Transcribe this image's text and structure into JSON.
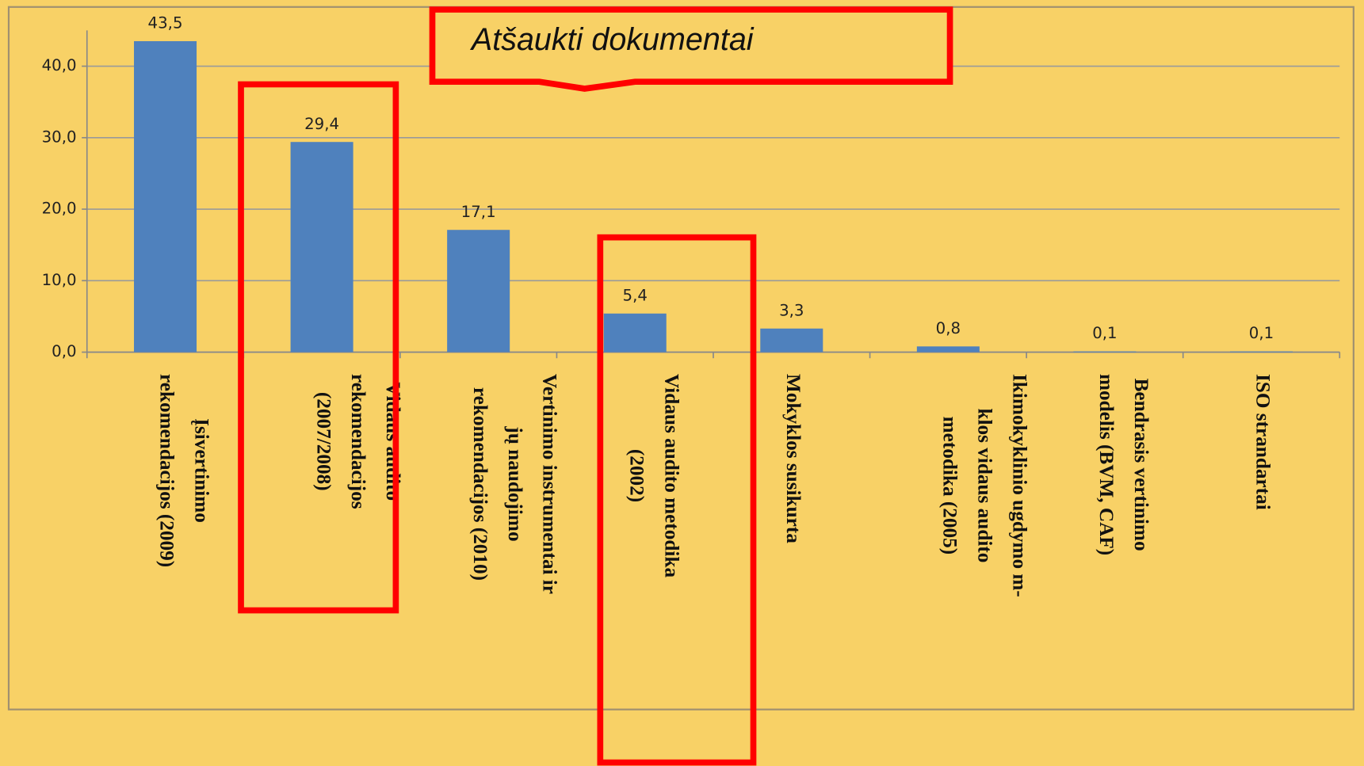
{
  "chart_data": {
    "type": "bar",
    "categories": [
      [
        "Įsivertinimo",
        "rekomendacijos (2009)"
      ],
      [
        "Vidaus audito",
        "rekomendacijos",
        "(2007/2008)"
      ],
      [
        "Vertinimo instrumentai ir",
        "jų naudojimo",
        "rekomendacijos (2010)"
      ],
      [
        "Vidaus audito metodika",
        "(2002)"
      ],
      [
        "Mokyklos susikurta"
      ],
      [
        "Ikimokyklinio ugdymo m-",
        "klos vidaus audito",
        "metodika (2005)"
      ],
      [
        "Bendrasis vertinimo",
        "modelis (BVM, CAF)"
      ],
      [
        "ISO strandartai"
      ]
    ],
    "values": [
      43.5,
      29.4,
      17.1,
      5.4,
      3.3,
      0.8,
      0.1,
      0.1
    ],
    "value_labels": [
      "43,5",
      "29,4",
      "17,1",
      "5,4",
      "3,3",
      "0,8",
      "0,1",
      "0,1"
    ],
    "color": "#4f81bd",
    "ylim": [
      0,
      45
    ],
    "yticks": [
      {
        "value": 0,
        "label": "0,0"
      },
      {
        "value": 10,
        "label": "10,0"
      },
      {
        "value": 20,
        "label": "20,0"
      },
      {
        "value": 30,
        "label": "30,0"
      },
      {
        "value": 40,
        "label": "40,0"
      }
    ],
    "grid": true,
    "annotation": "Atšaukti dokumentai"
  }
}
